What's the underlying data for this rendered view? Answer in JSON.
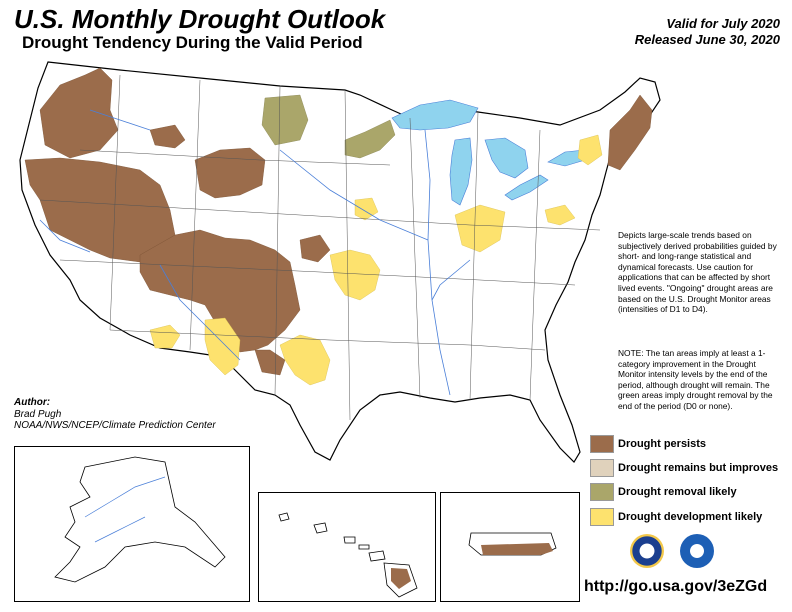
{
  "header": {
    "title": "U.S. Monthly Drought Outlook",
    "subtitle": "Drought Tendency During the Valid Period",
    "valid": "Valid for July 2020",
    "released": "Released June 30, 2020"
  },
  "description": "Depicts large-scale trends based on subjectively derived probabilities guided by short- and long-range statistical and dynamical forecasts. Use caution for applications that can be affected by short lived events. \"Ongoing\" drought areas are based on the U.S. Drought Monitor areas (intensities of D1 to D4).",
  "note": "NOTE: The tan areas imply at least a 1-category improvement in the Drought Monitor intensity levels by the end of the period, although drought will remain. The green areas imply drought removal by the end of the period (D0 or none).",
  "author": {
    "heading": "Author:",
    "name": "Brad Pugh",
    "org": "NOAA/NWS/NCEP/Climate Prediction Center"
  },
  "legend": [
    {
      "label": "Drought persists",
      "color": "#9b6c4b"
    },
    {
      "label": "Drought remains but improves",
      "color": "#e0d2bc"
    },
    {
      "label": "Drought removal likely",
      "color": "#aaa66a"
    },
    {
      "label": "Drought development likely",
      "color": "#fde26e"
    }
  ],
  "url": "http://go.usa.gov/3eZGd",
  "colors": {
    "persists": "#9b6c4b",
    "improves": "#e0d2bc",
    "removal": "#aaa66a",
    "development": "#fde26e",
    "water": "#8fd3ee",
    "rivers": "#4a7fd8"
  }
}
